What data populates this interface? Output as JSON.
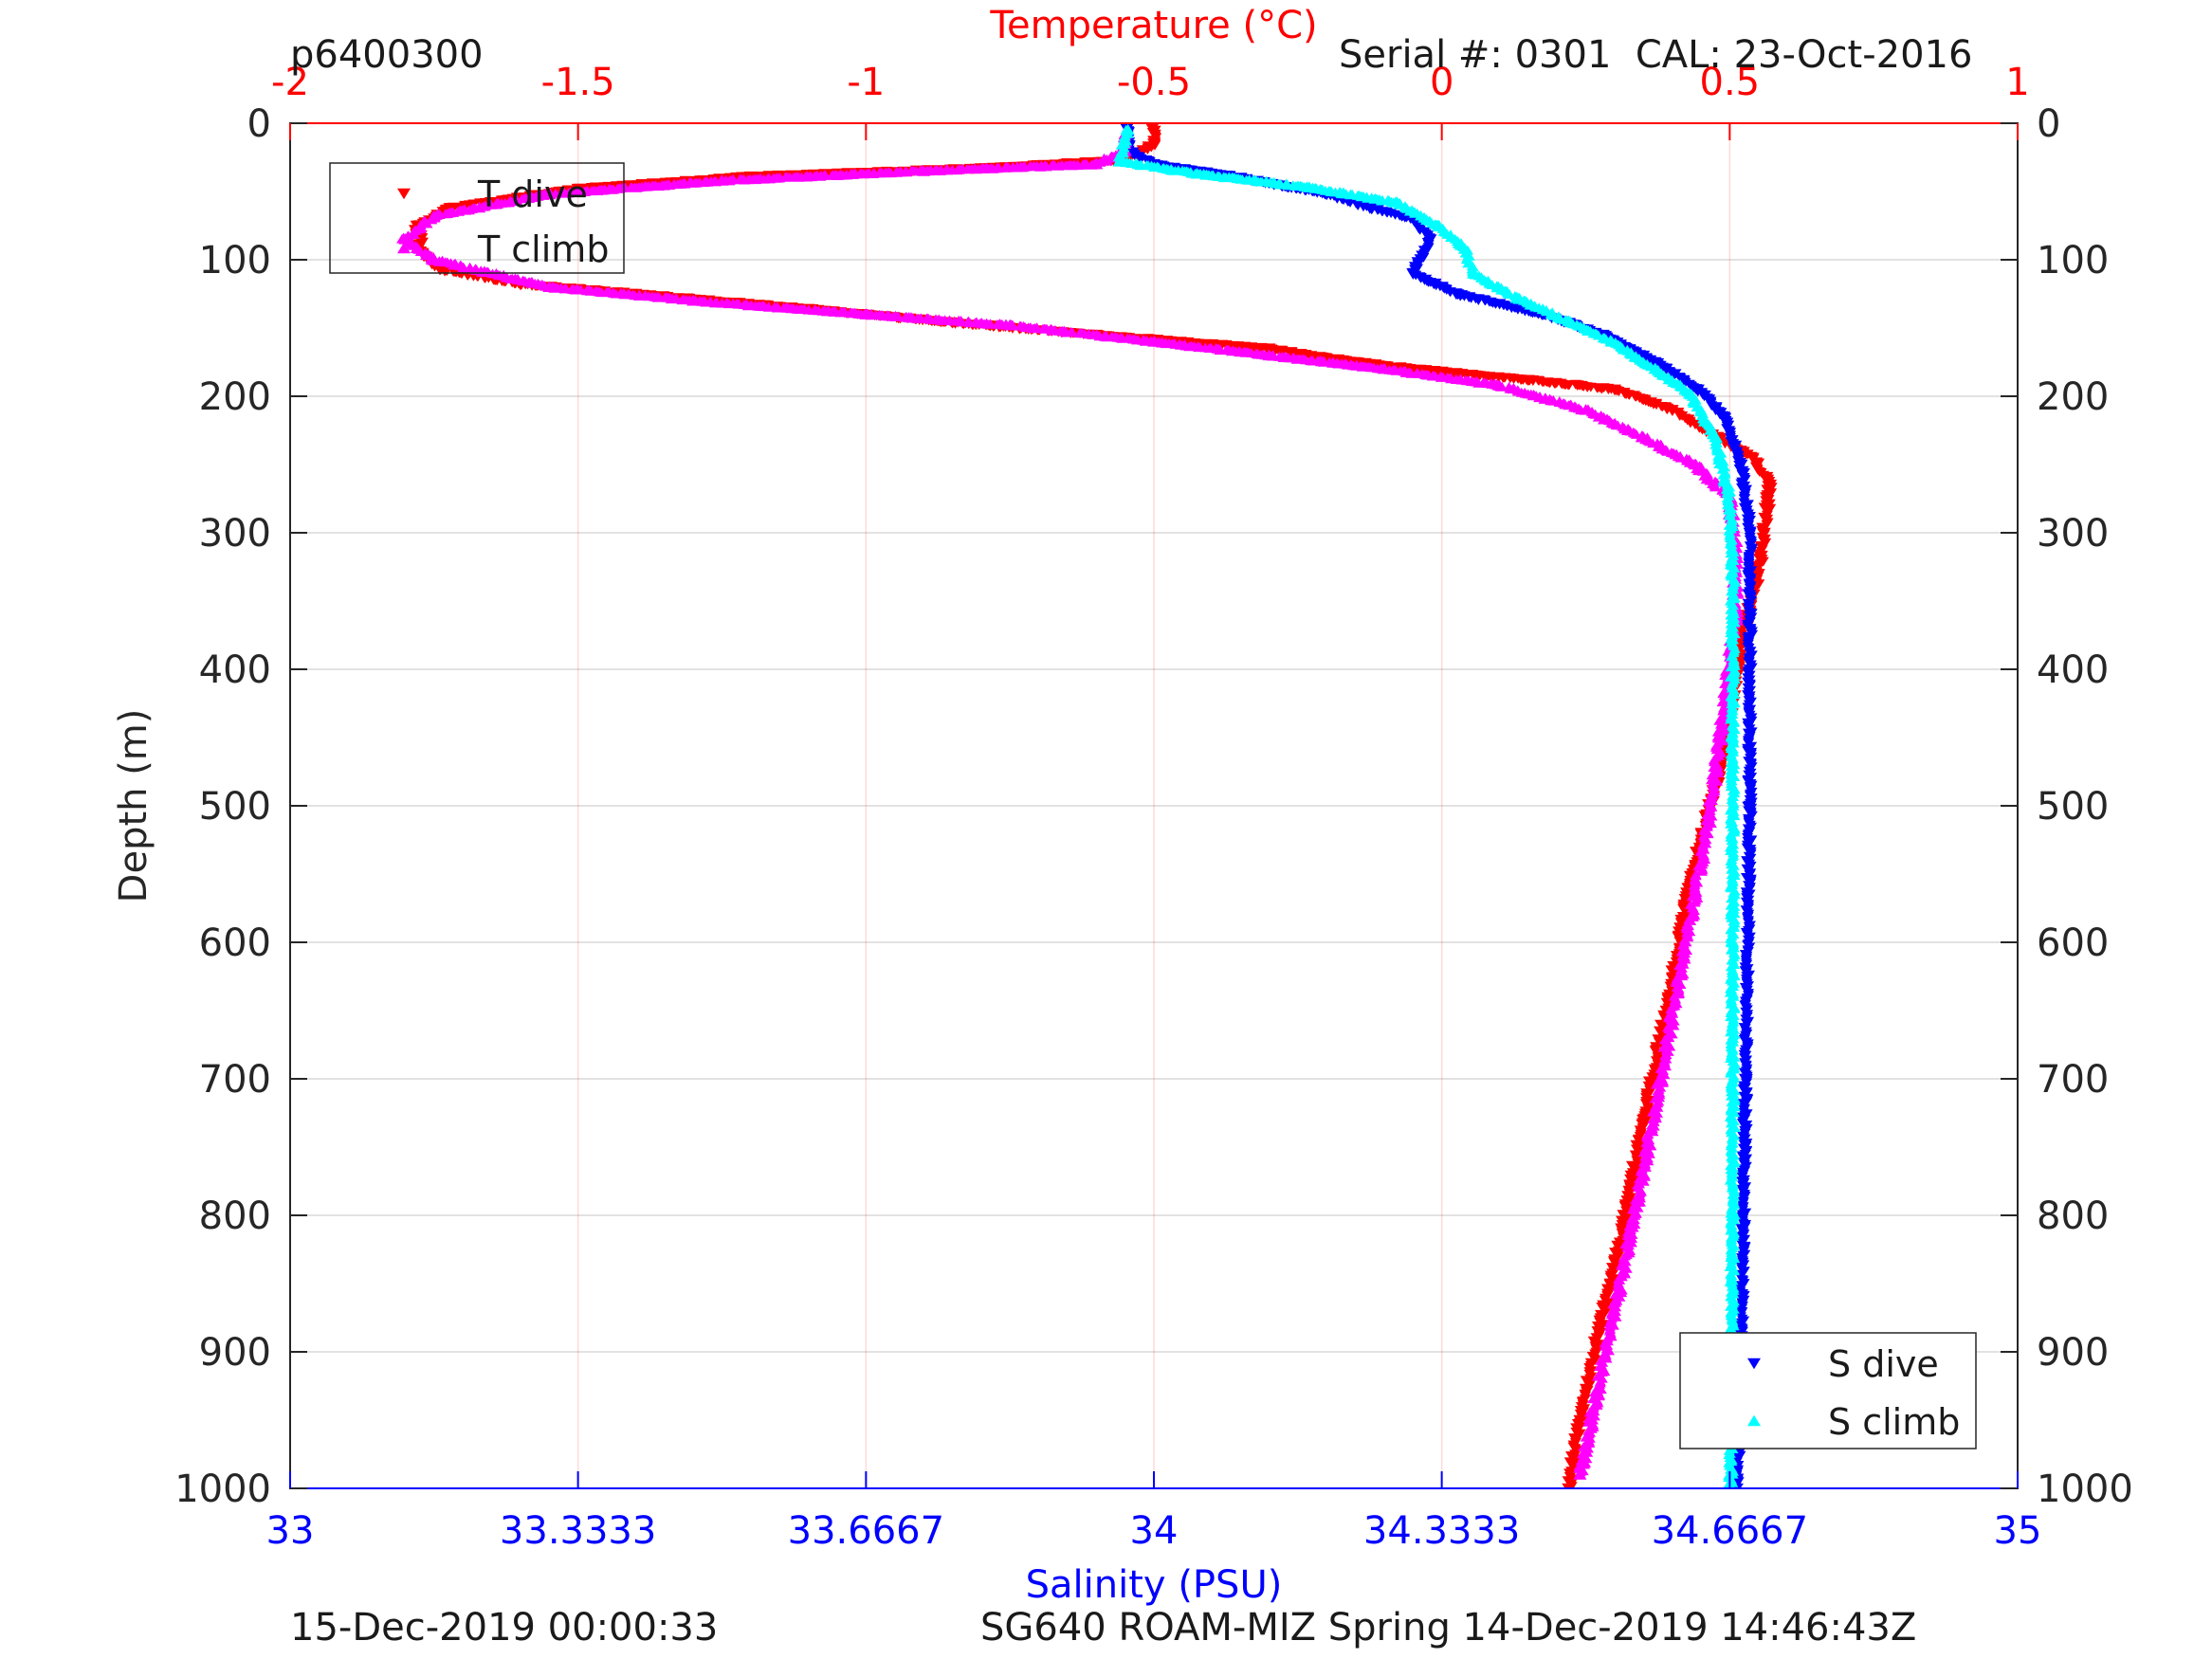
{
  "header": {
    "profile_id": "p6400300",
    "serial": "Serial #: 0301  CAL: 23-Oct-2016"
  },
  "footer": {
    "left": "15-Dec-2019 00:00:33",
    "right": "SG640 ROAM-MIZ Spring 14-Dec-2019 14:46:43Z"
  },
  "colors": {
    "t_dive": "#ff0000",
    "t_climb": "#ff00ff",
    "s_dive": "#0000ff",
    "s_climb": "#00ffff",
    "temperature_axis": "#ff0000",
    "salinity_axis": "#0000ff"
  },
  "chart_data": {
    "type": "scatter",
    "ylabel": "Depth (m)",
    "ylim": [
      0,
      1000
    ],
    "y_reversed": true,
    "yticks": [
      "0",
      "100",
      "200",
      "300",
      "400",
      "500",
      "600",
      "700",
      "800",
      "900",
      "1000"
    ],
    "temperature_axis": {
      "label": "Temperature (°C)",
      "position": "top",
      "lim": [
        -2,
        1
      ],
      "ticks": [
        "-2",
        "-1.5",
        "-1",
        "-0.5",
        "0",
        "0.5",
        "1"
      ]
    },
    "salinity_axis": {
      "label": "Salinity (PSU)",
      "position": "bottom",
      "lim": [
        33,
        35
      ],
      "ticks": [
        "33",
        "33.3333",
        "33.6667",
        "34",
        "34.3333",
        "34.6667",
        "35"
      ]
    },
    "grid": true,
    "legends": [
      {
        "placement": "top-left",
        "entries": [
          "T dive",
          "T climb"
        ]
      },
      {
        "placement": "bottom-right",
        "entries": [
          "S dive",
          "S climb"
        ]
      }
    ],
    "series": [
      {
        "name": "T dive",
        "axis": "temperature",
        "marker": "triangle-down",
        "points": [
          [
            -0.5,
            2
          ],
          [
            -0.5,
            15
          ],
          [
            -0.55,
            27
          ],
          [
            -0.8,
            33
          ],
          [
            -1.2,
            39
          ],
          [
            -1.5,
            48
          ],
          [
            -1.72,
            62
          ],
          [
            -1.78,
            75
          ],
          [
            -1.77,
            95
          ],
          [
            -1.74,
            107
          ],
          [
            -1.6,
            118
          ],
          [
            -1.4,
            125
          ],
          [
            -1.1,
            136
          ],
          [
            -0.85,
            146
          ],
          [
            -0.6,
            155
          ],
          [
            -0.3,
            165
          ],
          [
            -0.15,
            175
          ],
          [
            0,
            182
          ],
          [
            0.15,
            188
          ],
          [
            0.3,
            195
          ],
          [
            0.4,
            210
          ],
          [
            0.47,
            228
          ],
          [
            0.54,
            245
          ],
          [
            0.57,
            265
          ],
          [
            0.56,
            300
          ],
          [
            0.55,
            330
          ],
          [
            0.52,
            380
          ],
          [
            0.49,
            460
          ],
          [
            0.43,
            560
          ],
          [
            0.39,
            650
          ],
          [
            0.35,
            730
          ],
          [
            0.31,
            820
          ],
          [
            0.27,
            890
          ],
          [
            0.24,
            950
          ],
          [
            0.22,
            1000
          ]
        ]
      },
      {
        "name": "T climb",
        "axis": "temperature",
        "marker": "triangle-up",
        "points": [
          [
            -0.55,
            8
          ],
          [
            -0.55,
            20
          ],
          [
            -0.6,
            30
          ],
          [
            -0.9,
            35
          ],
          [
            -1.25,
            42
          ],
          [
            -1.55,
            52
          ],
          [
            -1.75,
            68
          ],
          [
            -1.8,
            85
          ],
          [
            -1.75,
            100
          ],
          [
            -1.55,
            120
          ],
          [
            -1.3,
            130
          ],
          [
            -1.0,
            140
          ],
          [
            -0.75,
            148
          ],
          [
            -0.5,
            160
          ],
          [
            -0.3,
            170
          ],
          [
            -0.1,
            180
          ],
          [
            0.1,
            192
          ],
          [
            0.25,
            210
          ],
          [
            0.35,
            230
          ],
          [
            0.44,
            250
          ],
          [
            0.5,
            275
          ],
          [
            0.51,
            310
          ],
          [
            0.51,
            360
          ],
          [
            0.49,
            430
          ],
          [
            0.46,
            520
          ],
          [
            0.42,
            610
          ],
          [
            0.38,
            700
          ],
          [
            0.34,
            790
          ],
          [
            0.3,
            870
          ],
          [
            0.27,
            930
          ],
          [
            0.24,
            990
          ]
        ]
      },
      {
        "name": "S dive",
        "axis": "salinity",
        "marker": "triangle-down",
        "points": [
          [
            33.97,
            2
          ],
          [
            33.97,
            20
          ],
          [
            34.0,
            30
          ],
          [
            34.1,
            40
          ],
          [
            34.2,
            52
          ],
          [
            34.25,
            62
          ],
          [
            34.3,
            70
          ],
          [
            34.32,
            85
          ],
          [
            34.3,
            110
          ],
          [
            34.35,
            125
          ],
          [
            34.45,
            140
          ],
          [
            34.52,
            155
          ],
          [
            34.58,
            175
          ],
          [
            34.63,
            195
          ],
          [
            34.66,
            215
          ],
          [
            34.68,
            250
          ],
          [
            34.69,
            300
          ],
          [
            34.69,
            400
          ],
          [
            34.69,
            500
          ],
          [
            34.685,
            700
          ],
          [
            34.68,
            900
          ],
          [
            34.675,
            1000
          ]
        ]
      },
      {
        "name": "S climb",
        "axis": "salinity",
        "marker": "triangle-up",
        "points": [
          [
            33.97,
            5
          ],
          [
            33.96,
            28
          ],
          [
            34.05,
            37
          ],
          [
            34.18,
            47
          ],
          [
            34.28,
            58
          ],
          [
            34.33,
            75
          ],
          [
            34.36,
            92
          ],
          [
            34.37,
            110
          ],
          [
            34.42,
            128
          ],
          [
            34.48,
            145
          ],
          [
            34.53,
            160
          ],
          [
            34.58,
            180
          ],
          [
            34.62,
            198
          ],
          [
            34.65,
            230
          ],
          [
            34.665,
            270
          ],
          [
            34.67,
            320
          ],
          [
            34.67,
            450
          ],
          [
            34.67,
            600
          ],
          [
            34.67,
            800
          ],
          [
            34.668,
            1000
          ]
        ]
      }
    ]
  }
}
